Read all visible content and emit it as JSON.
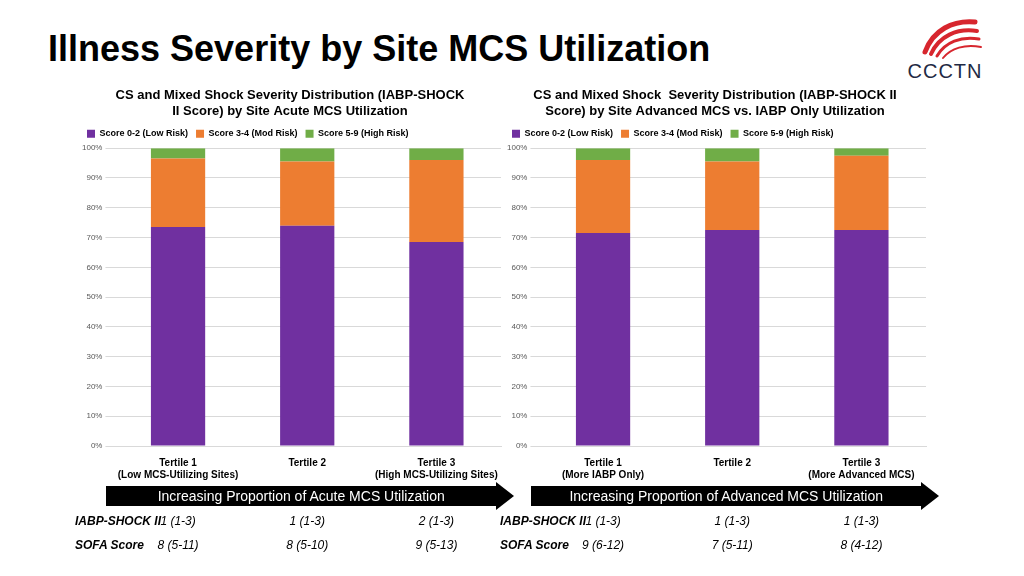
{
  "title": "Illness Severity by Site MCS Utilization",
  "logo": "CCCTN",
  "chart_data": [
    {
      "type": "bar",
      "title": [
        "CS and Mixed Shock Severity Distribution (IABP-SHOCK",
        "II Score) by Site Acute MCS Utilization"
      ],
      "categories": [
        [
          "Tertile 1",
          "(Low MCS-Utilizing Sites)"
        ],
        "Tertile 2",
        [
          "Tertile 3",
          "(High MCS-Utilizing Sites)"
        ]
      ],
      "series": [
        {
          "name": "Score 0-2 (Low Risk)",
          "color": "#7030a0",
          "values": [
            73.5,
            74,
            68.5
          ]
        },
        {
          "name": "Score 3-4 (Mod Risk)",
          "color": "#ed7d31",
          "values": [
            23,
            21.5,
            27.5
          ]
        },
        {
          "name": "Score 5-9 (High Risk)",
          "color": "#70ad47",
          "values": [
            3.5,
            4.5,
            4
          ]
        }
      ],
      "stacked": true,
      "ylim": [
        0,
        100
      ],
      "yticks": [
        {
          "value": 0,
          "label": "0%"
        },
        {
          "value": 10,
          "label": "10%"
        },
        {
          "value": 20,
          "label": "20%"
        },
        {
          "value": 30,
          "label": "30%"
        },
        {
          "value": 40,
          "label": "40%"
        },
        {
          "value": 50,
          "label": "50%"
        },
        {
          "value": 60,
          "label": "60%"
        },
        {
          "value": 70,
          "label": "70%"
        },
        {
          "value": 80,
          "label": "80%"
        },
        {
          "value": 90,
          "label": "90%"
        },
        {
          "value": 100,
          "label": "100%"
        }
      ],
      "grid": true,
      "legend": "top",
      "arrow_label": "Increasing Proportion of Acute MCS Utilization",
      "summary_rows": [
        {
          "label": "IABP-SHOCK II",
          "values": [
            "1 (1-3)",
            "1 (1-3)",
            "2 (1-3)"
          ]
        },
        {
          "label": "SOFA Score",
          "values": [
            "8 (5-11)",
            "8 (5-10)",
            "9 (5-13)"
          ]
        }
      ]
    },
    {
      "type": "bar",
      "title": [
        "CS and Mixed Shock  Severity Distribution (IABP-SHOCK II",
        "Score) by Site Advanced MCS vs. IABP Only Utilization"
      ],
      "categories": [
        [
          "Tertile 1",
          "(More IABP Only)"
        ],
        "Tertile 2",
        [
          "Tertile 3",
          "(More Advanced MCS)"
        ]
      ],
      "series": [
        {
          "name": "Score 0-2 (Low Risk)",
          "color": "#7030a0",
          "values": [
            71.5,
            72.5,
            72.5
          ]
        },
        {
          "name": "Score 3-4 (Mod Risk)",
          "color": "#ed7d31",
          "values": [
            24.5,
            23,
            25
          ]
        },
        {
          "name": "Score 5-9 (High Risk)",
          "color": "#70ad47",
          "values": [
            4,
            4.5,
            2.5
          ]
        }
      ],
      "stacked": true,
      "ylim": [
        0,
        100
      ],
      "yticks": [
        {
          "value": 0,
          "label": "0%"
        },
        {
          "value": 10,
          "label": "10%"
        },
        {
          "value": 20,
          "label": "20%"
        },
        {
          "value": 30,
          "label": "30%"
        },
        {
          "value": 40,
          "label": "40%"
        },
        {
          "value": 50,
          "label": "50%"
        },
        {
          "value": 60,
          "label": "60%"
        },
        {
          "value": 70,
          "label": "70%"
        },
        {
          "value": 80,
          "label": "80%"
        },
        {
          "value": 90,
          "label": "90%"
        },
        {
          "value": 100,
          "label": "100%"
        }
      ],
      "grid": true,
      "legend": "top",
      "arrow_label": "Increasing Proportion of Advanced MCS Utilization",
      "summary_rows": [
        {
          "label": "IABP-SHOCK II",
          "values": [
            "1 (1-3)",
            "1 (1-3)",
            "1 (1-3)"
          ]
        },
        {
          "label": "SOFA Score",
          "values": [
            "9 (6-12)",
            "7 (5-11)",
            "8 (4-12)"
          ]
        }
      ]
    }
  ]
}
